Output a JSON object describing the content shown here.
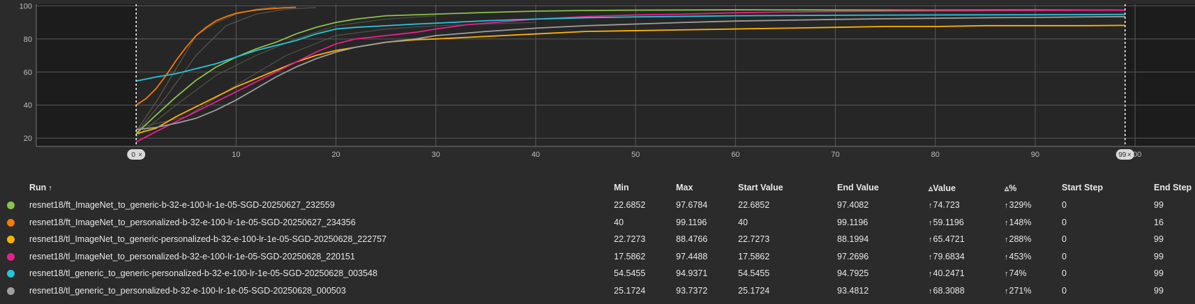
{
  "chart_data": {
    "type": "line",
    "ylim": [
      15,
      101
    ],
    "xlim": [
      -10,
      106
    ],
    "y_ticks": [
      20,
      40,
      60,
      80,
      100
    ],
    "x_ticks": [
      10,
      20,
      30,
      40,
      50,
      60,
      70,
      80,
      90,
      100
    ],
    "x_tick_labels": [
      "10",
      "20",
      "30",
      "40",
      "50",
      "60",
      "70",
      "80",
      "90",
      "100"
    ],
    "grid": true,
    "range_markers": {
      "start_label": "0",
      "end_label": "99",
      "start": 0,
      "end": 99
    },
    "series": [
      {
        "name": "resnet18/ft_ImageNet_to_generic-b-32-e-100-lr-1e-05-SGD-20250627_232559",
        "color": "#8bc34a",
        "points": [
          [
            0,
            22.7
          ],
          [
            2,
            34
          ],
          [
            4,
            45
          ],
          [
            6,
            55
          ],
          [
            8,
            63
          ],
          [
            10,
            69
          ],
          [
            12,
            74
          ],
          [
            14,
            78
          ],
          [
            16,
            83
          ],
          [
            18,
            87
          ],
          [
            20,
            90
          ],
          [
            22,
            92
          ],
          [
            25,
            94
          ],
          [
            30,
            95
          ],
          [
            35,
            96
          ],
          [
            40,
            96.8
          ],
          [
            45,
            97.2
          ],
          [
            50,
            97.4
          ],
          [
            60,
            97.6
          ],
          [
            70,
            97.5
          ],
          [
            80,
            97.4
          ],
          [
            90,
            97.5
          ],
          [
            99,
            97.4
          ]
        ]
      },
      {
        "name": "resnet18/ft_ImageNet_to_personalized-b-32-e-100-lr-1e-05-SGD-20250627_234356",
        "color": "#f57c00",
        "points": [
          [
            0,
            40
          ],
          [
            1,
            44
          ],
          [
            2,
            50
          ],
          [
            3,
            58
          ],
          [
            4,
            67
          ],
          [
            5,
            75
          ],
          [
            6,
            82
          ],
          [
            7,
            87
          ],
          [
            8,
            91
          ],
          [
            9,
            93.5
          ],
          [
            10,
            95.5
          ],
          [
            11,
            96.5
          ],
          [
            12,
            97.5
          ],
          [
            13,
            98
          ],
          [
            14,
            98.5
          ],
          [
            15,
            98.9
          ],
          [
            16,
            99.1
          ]
        ]
      },
      {
        "name": "resnet18/tl_ImageNet_to_generic-personalized-b-32-e-100-lr-1e-05-SGD-20250628_222757",
        "color": "#ffb300",
        "points": [
          [
            0,
            22.7
          ],
          [
            2,
            26
          ],
          [
            4,
            33
          ],
          [
            6,
            39
          ],
          [
            8,
            45
          ],
          [
            10,
            51
          ],
          [
            12,
            56
          ],
          [
            14,
            61
          ],
          [
            16,
            66
          ],
          [
            18,
            70
          ],
          [
            20,
            73
          ],
          [
            22,
            75
          ],
          [
            25,
            78
          ],
          [
            28,
            79.5
          ],
          [
            30,
            80
          ],
          [
            35,
            81.5
          ],
          [
            40,
            83
          ],
          [
            45,
            84.5
          ],
          [
            50,
            85
          ],
          [
            55,
            85.5
          ],
          [
            60,
            86
          ],
          [
            65,
            86.5
          ],
          [
            70,
            87
          ],
          [
            75,
            87.5
          ],
          [
            80,
            87.5
          ],
          [
            85,
            88
          ],
          [
            90,
            88
          ],
          [
            95,
            88
          ],
          [
            99,
            88.2
          ]
        ]
      },
      {
        "name": "resnet18/tl_ImageNet_to_personalized-b-32-e-100-lr-1e-05-SGD-20250628_220151",
        "color": "#e91e8c",
        "points": [
          [
            0,
            17.6
          ],
          [
            2,
            24
          ],
          [
            4,
            30
          ],
          [
            6,
            36
          ],
          [
            8,
            42
          ],
          [
            10,
            48
          ],
          [
            12,
            54
          ],
          [
            14,
            60
          ],
          [
            16,
            66
          ],
          [
            18,
            72
          ],
          [
            20,
            77
          ],
          [
            22,
            80
          ],
          [
            25,
            82
          ],
          [
            28,
            84
          ],
          [
            30,
            86
          ],
          [
            33,
            88.5
          ],
          [
            36,
            90
          ],
          [
            40,
            92
          ],
          [
            45,
            93.5
          ],
          [
            50,
            94.5
          ],
          [
            55,
            95
          ],
          [
            60,
            95.8
          ],
          [
            65,
            96.3
          ],
          [
            70,
            96.6
          ],
          [
            75,
            96.8
          ],
          [
            80,
            97
          ],
          [
            85,
            97.1
          ],
          [
            90,
            97.2
          ],
          [
            95,
            97.3
          ],
          [
            99,
            97.3
          ]
        ]
      },
      {
        "name": "resnet18/tl_generic_to_generic-personalized-b-32-e-100-lr-1e-05-SGD-20250628_003548",
        "color": "#26c6da",
        "points": [
          [
            0,
            54.5
          ],
          [
            2,
            57
          ],
          [
            4,
            59
          ],
          [
            6,
            62
          ],
          [
            8,
            65
          ],
          [
            10,
            69
          ],
          [
            12,
            73
          ],
          [
            14,
            76
          ],
          [
            16,
            79
          ],
          [
            18,
            83
          ],
          [
            20,
            86
          ],
          [
            22,
            87
          ],
          [
            25,
            88
          ],
          [
            28,
            89
          ],
          [
            30,
            89.5
          ],
          [
            35,
            91
          ],
          [
            40,
            92
          ],
          [
            45,
            92.8
          ],
          [
            50,
            93.3
          ],
          [
            60,
            94
          ],
          [
            70,
            94.3
          ],
          [
            80,
            94.5
          ],
          [
            90,
            94.6
          ],
          [
            99,
            94.8
          ]
        ]
      },
      {
        "name": "resnet18/tl_generic_to_personalized-b-32-e-100-lr-1e-05-SGD-20250628_000503",
        "color": "#9e9e9e",
        "points": [
          [
            0,
            25.2
          ],
          [
            2,
            26.5
          ],
          [
            4,
            29
          ],
          [
            6,
            32
          ],
          [
            8,
            37
          ],
          [
            10,
            43
          ],
          [
            12,
            50
          ],
          [
            14,
            57
          ],
          [
            16,
            63
          ],
          [
            18,
            68
          ],
          [
            20,
            72
          ],
          [
            22,
            75
          ],
          [
            25,
            78
          ],
          [
            28,
            80
          ],
          [
            30,
            82
          ],
          [
            35,
            84.5
          ],
          [
            40,
            86.5
          ],
          [
            45,
            88
          ],
          [
            50,
            89
          ],
          [
            55,
            90
          ],
          [
            60,
            90.8
          ],
          [
            65,
            91.3
          ],
          [
            70,
            91.8
          ],
          [
            75,
            92.2
          ],
          [
            80,
            92.5
          ],
          [
            85,
            92.8
          ],
          [
            90,
            93
          ],
          [
            95,
            93.3
          ],
          [
            99,
            93.5
          ]
        ]
      }
    ],
    "faint_series": [
      {
        "color": "#6d5a4a",
        "points": [
          [
            0,
            24
          ],
          [
            2,
            42
          ],
          [
            4,
            62
          ],
          [
            6,
            82
          ],
          [
            8,
            90
          ],
          [
            10,
            95
          ],
          [
            12,
            98
          ],
          [
            14,
            99.3
          ]
        ]
      },
      {
        "color": "#5a5a5a",
        "points": [
          [
            0,
            23
          ],
          [
            3,
            45
          ],
          [
            6,
            70
          ],
          [
            9,
            88
          ],
          [
            12,
            95
          ],
          [
            15,
            98
          ],
          [
            18,
            99
          ]
        ]
      },
      {
        "color": "#4f5a45",
        "points": [
          [
            0,
            21
          ],
          [
            4,
            40
          ],
          [
            8,
            58
          ],
          [
            12,
            70
          ],
          [
            16,
            80
          ],
          [
            20,
            88
          ],
          [
            25,
            92
          ],
          [
            30,
            94
          ]
        ]
      },
      {
        "color": "#555555",
        "points": [
          [
            0,
            26
          ],
          [
            5,
            33
          ],
          [
            10,
            52
          ],
          [
            15,
            70
          ],
          [
            20,
            82
          ],
          [
            25,
            86
          ],
          [
            30,
            88
          ],
          [
            40,
            90
          ]
        ]
      }
    ]
  },
  "table": {
    "headers": {
      "run": "Run",
      "sort_arrow": "↑",
      "min": "Min",
      "max": "Max",
      "start_value": "Start Value",
      "end_value": "End Value",
      "delta_value": "Value",
      "delta_pct": "%",
      "start_step": "Start Step",
      "end_step": "End Step",
      "delta_symbol": "▵"
    },
    "rows": [
      {
        "color": "#8bc34a",
        "run": "resnet18/ft_ImageNet_to_generic-b-32-e-100-lr-1e-05-SGD-20250627_232559",
        "min": "22.6852",
        "max": "97.6784",
        "start_value": "22.6852",
        "end_value": "97.4082",
        "delta_value": "74.723",
        "delta_pct": "329%",
        "start_step": "0",
        "end_step": "99"
      },
      {
        "color": "#f57c00",
        "run": "resnet18/ft_ImageNet_to_personalized-b-32-e-100-lr-1e-05-SGD-20250627_234356",
        "min": "40",
        "max": "99.1196",
        "start_value": "40",
        "end_value": "99.1196",
        "delta_value": "59.1196",
        "delta_pct": "148%",
        "start_step": "0",
        "end_step": "16"
      },
      {
        "color": "#ffb300",
        "run": "resnet18/tl_ImageNet_to_generic-personalized-b-32-e-100-lr-1e-05-SGD-20250628_222757",
        "min": "22.7273",
        "max": "88.4766",
        "start_value": "22.7273",
        "end_value": "88.1994",
        "delta_value": "65.4721",
        "delta_pct": "288%",
        "start_step": "0",
        "end_step": "99"
      },
      {
        "color": "#e91e8c",
        "run": "resnet18/tl_ImageNet_to_personalized-b-32-e-100-lr-1e-05-SGD-20250628_220151",
        "min": "17.5862",
        "max": "97.4488",
        "start_value": "17.5862",
        "end_value": "97.2696",
        "delta_value": "79.6834",
        "delta_pct": "453%",
        "start_step": "0",
        "end_step": "99"
      },
      {
        "color": "#26c6da",
        "run": "resnet18/tl_generic_to_generic-personalized-b-32-e-100-lr-1e-05-SGD-20250628_003548",
        "min": "54.5455",
        "max": "94.9371",
        "start_value": "54.5455",
        "end_value": "94.7925",
        "delta_value": "40.2471",
        "delta_pct": "74%",
        "start_step": "0",
        "end_step": "99"
      },
      {
        "color": "#9e9e9e",
        "run": "resnet18/tl_generic_to_personalized-b-32-e-100-lr-1e-05-SGD-20250628_000503",
        "min": "25.1724",
        "max": "93.7372",
        "start_value": "25.1724",
        "end_value": "93.4812",
        "delta_value": "68.3088",
        "delta_pct": "271%",
        "start_step": "0",
        "end_step": "99"
      }
    ],
    "up_arrow": "↑"
  }
}
